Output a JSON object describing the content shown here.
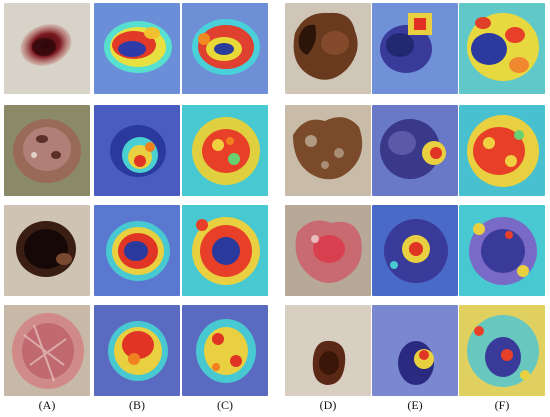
{
  "figure": {
    "column_labels": [
      {
        "letter": "A",
        "text": "(A)"
      },
      {
        "letter": "B",
        "text": "(B)"
      },
      {
        "letter": "C",
        "text": "(C)"
      },
      {
        "letter": "D",
        "text": "(D)"
      },
      {
        "letter": "E",
        "text": "(E)"
      },
      {
        "letter": "F",
        "text": "(F)"
      }
    ],
    "panels": [
      {
        "row": 1,
        "column": "A",
        "kind": "dermoscopy",
        "lesion": "red-brown oval lesion on pale skin"
      },
      {
        "row": 1,
        "column": "B",
        "kind": "heatmap"
      },
      {
        "row": 1,
        "column": "C",
        "kind": "heatmap"
      },
      {
        "row": 1,
        "column": "D",
        "kind": "dermoscopy",
        "lesion": "brown irregular lesion with dark edge"
      },
      {
        "row": 1,
        "column": "E",
        "kind": "heatmap"
      },
      {
        "row": 1,
        "column": "F",
        "kind": "heatmap"
      },
      {
        "row": 2,
        "column": "A",
        "kind": "dermoscopy",
        "lesion": "pink-brown lesion with glossy spots"
      },
      {
        "row": 2,
        "column": "B",
        "kind": "heatmap"
      },
      {
        "row": 2,
        "column": "C",
        "kind": "heatmap"
      },
      {
        "row": 2,
        "column": "D",
        "kind": "dermoscopy",
        "lesion": "mottled brown lesion"
      },
      {
        "row": 2,
        "column": "E",
        "kind": "heatmap"
      },
      {
        "row": 2,
        "column": "F",
        "kind": "heatmap"
      },
      {
        "row": 3,
        "column": "A",
        "kind": "dermoscopy",
        "lesion": "very dark round lesion"
      },
      {
        "row": 3,
        "column": "B",
        "kind": "heatmap"
      },
      {
        "row": 3,
        "column": "C",
        "kind": "heatmap"
      },
      {
        "row": 3,
        "column": "D",
        "kind": "dermoscopy",
        "lesion": "pink-red irregular lesion"
      },
      {
        "row": 3,
        "column": "E",
        "kind": "heatmap"
      },
      {
        "row": 3,
        "column": "F",
        "kind": "heatmap"
      },
      {
        "row": 4,
        "column": "A",
        "kind": "dermoscopy",
        "lesion": "pink scaly lesion"
      },
      {
        "row": 4,
        "column": "B",
        "kind": "heatmap"
      },
      {
        "row": 4,
        "column": "C",
        "kind": "heatmap"
      },
      {
        "row": 4,
        "column": "D",
        "kind": "dermoscopy",
        "lesion": "small dark brown lesion on pale skin"
      },
      {
        "row": 4,
        "column": "E",
        "kind": "heatmap"
      },
      {
        "row": 4,
        "column": "F",
        "kind": "heatmap"
      }
    ]
  }
}
